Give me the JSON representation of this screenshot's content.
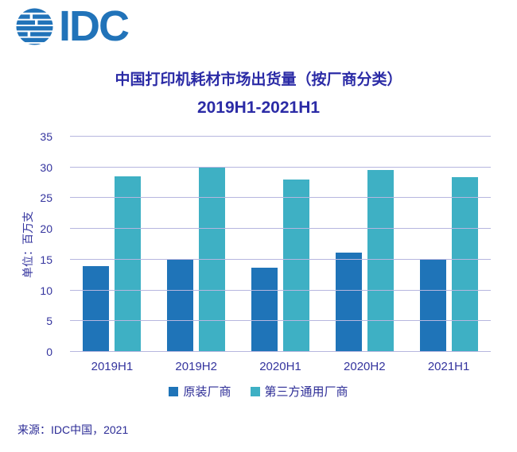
{
  "logo": {
    "text": "IDC",
    "color": "#2173b9",
    "icon": "striped-globe-icon"
  },
  "title": {
    "line1": "中国打印机耗材市场出货量（按厂商分类）",
    "line2": "2019H1-2021H1"
  },
  "chart_data": {
    "type": "bar",
    "categories": [
      "2019H1",
      "2019H2",
      "2020H1",
      "2020H2",
      "2021H1"
    ],
    "series": [
      {
        "name": "原装厂商",
        "color": "#1f74b8",
        "values": [
          13.9,
          15.0,
          13.7,
          16.2,
          15.1
        ]
      },
      {
        "name": "第三方通用厂商",
        "color": "#3eb0c4",
        "values": [
          28.5,
          30.1,
          28.0,
          29.6,
          28.4
        ]
      }
    ],
    "title": "中国打印机耗材市场出货量（按厂商分类）2019H1-2021H1",
    "xlabel": "",
    "ylabel": "单位：百万支",
    "ylim": [
      0,
      35
    ],
    "yticks": [
      0,
      5,
      10,
      15,
      20,
      25,
      30,
      35
    ],
    "grid": true,
    "legend_position": "bottom",
    "gridline_color": "#b6b6df",
    "axis_text_color": "#34349e"
  },
  "source": "来源：IDC中国，2021"
}
